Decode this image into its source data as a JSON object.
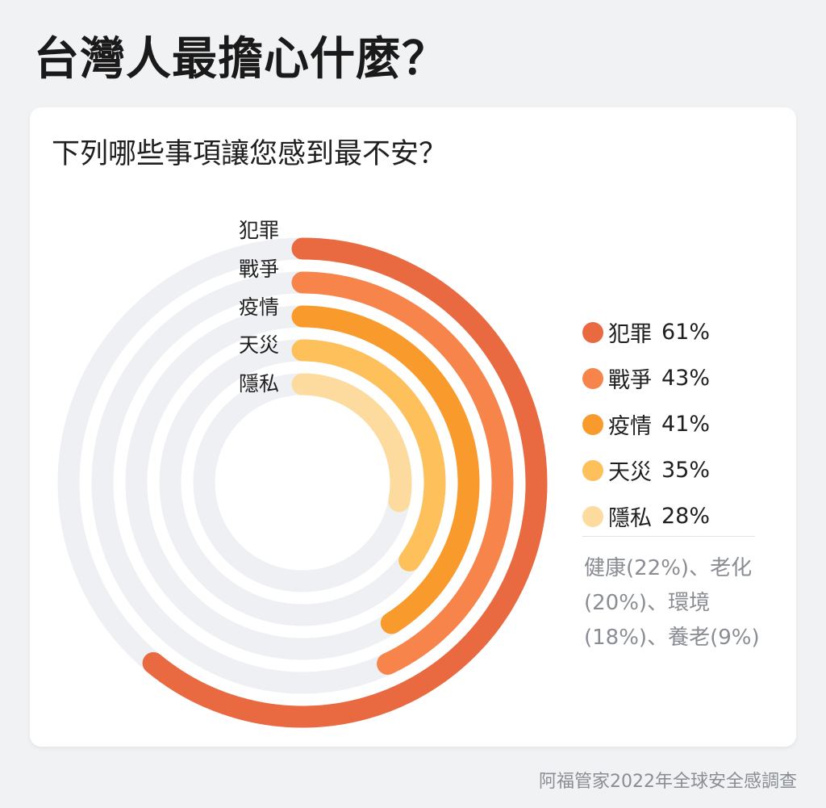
{
  "title": "台灣人最擔心什麼？",
  "question": "下列哪些事項讓您感到最不安？",
  "chart_data": {
    "type": "radial-bar",
    "unit": "%",
    "max": 100,
    "categories": [
      "犯罪",
      "戰爭",
      "疫情",
      "天災",
      "隱私"
    ],
    "values": [
      61,
      43,
      41,
      35,
      28
    ],
    "value_labels": [
      "61%",
      "43%",
      "41%",
      "35%",
      "28%"
    ],
    "colors": [
      "#e96a40",
      "#f7844a",
      "#f99b2c",
      "#fdc05a",
      "#fddb9e"
    ],
    "track_color": "#eef0f3",
    "legend_position": "right"
  },
  "others": "健康(22%)、老化(20%)、環境(18%)、養老(9%)",
  "source": "阿福管家2022年全球安全感調查"
}
